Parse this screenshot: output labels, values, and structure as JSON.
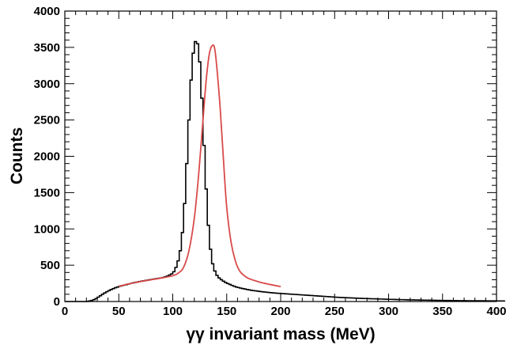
{
  "chart_data": {
    "type": "histogram",
    "title": "",
    "xlabel": "γγ invariant mass (MeV)",
    "ylabel": "Counts",
    "xlim": [
      0,
      400
    ],
    "ylim": [
      0,
      4000
    ],
    "grid": false,
    "legend": "none",
    "x_ticks": [
      0,
      50,
      100,
      150,
      200,
      250,
      300,
      350,
      400
    ],
    "y_ticks": [
      0,
      500,
      1000,
      1500,
      2000,
      2500,
      3000,
      3500,
      4000
    ],
    "bin_width": 2,
    "histogram": {
      "bin_edges_start": 0,
      "values": [
        0,
        0,
        0,
        0,
        0,
        0,
        0,
        0,
        0,
        0,
        2,
        8,
        15,
        25,
        40,
        60,
        80,
        100,
        118,
        135,
        150,
        165,
        178,
        190,
        200,
        210,
        218,
        225,
        232,
        240,
        248,
        255,
        262,
        268,
        275,
        280,
        285,
        290,
        295,
        300,
        305,
        310,
        315,
        320,
        325,
        330,
        340,
        350,
        365,
        380,
        410,
        470,
        560,
        700,
        950,
        1350,
        1900,
        2500,
        3050,
        3420,
        3580,
        3550,
        3300,
        2800,
        2150,
        1550,
        1050,
        720,
        520,
        420,
        360,
        325,
        300,
        280,
        262,
        248,
        235,
        222,
        210,
        200,
        192,
        185,
        178,
        172,
        166,
        160,
        155,
        150,
        146,
        142,
        138,
        134,
        131,
        128,
        125,
        122,
        119,
        117,
        114,
        112,
        110,
        108,
        106,
        104,
        102,
        100,
        98,
        96,
        94,
        92,
        90,
        88,
        86,
        84,
        82,
        80,
        78,
        76,
        74,
        72,
        70,
        68,
        66,
        64,
        62,
        60,
        58,
        56,
        55,
        54,
        52,
        51,
        50,
        48,
        47,
        46,
        44,
        43,
        42,
        41,
        40,
        39,
        38,
        37,
        36,
        35,
        34,
        33,
        32,
        31,
        30,
        30,
        29,
        28,
        27,
        26,
        26,
        25,
        24,
        23,
        23,
        22,
        21,
        21,
        20,
        20,
        19,
        19,
        18,
        18,
        17,
        17,
        16,
        16,
        15,
        15,
        14,
        14,
        14,
        13,
        13,
        13,
        12,
        12,
        12,
        12,
        11,
        11,
        11,
        11,
        10,
        10,
        10,
        10,
        10,
        9,
        9,
        9,
        9,
        9,
        8,
        8,
        8,
        8
      ]
    },
    "fit": {
      "color": "#d94a4a",
      "x": [
        50,
        60,
        70,
        80,
        90,
        100,
        105,
        110,
        115,
        120,
        124,
        128,
        131,
        134,
        137,
        139,
        141,
        144,
        147,
        150,
        154,
        158,
        162,
        166,
        170,
        180,
        190,
        200
      ],
      "y": [
        210,
        245,
        275,
        300,
        325,
        355,
        390,
        470,
        700,
        1150,
        1750,
        2500,
        3050,
        3420,
        3530,
        3470,
        3200,
        2650,
        1950,
        1300,
        820,
        560,
        420,
        360,
        320,
        270,
        235,
        205
      ]
    },
    "colors": {
      "histogram": "#000000",
      "fit": "#d94a4a"
    }
  }
}
